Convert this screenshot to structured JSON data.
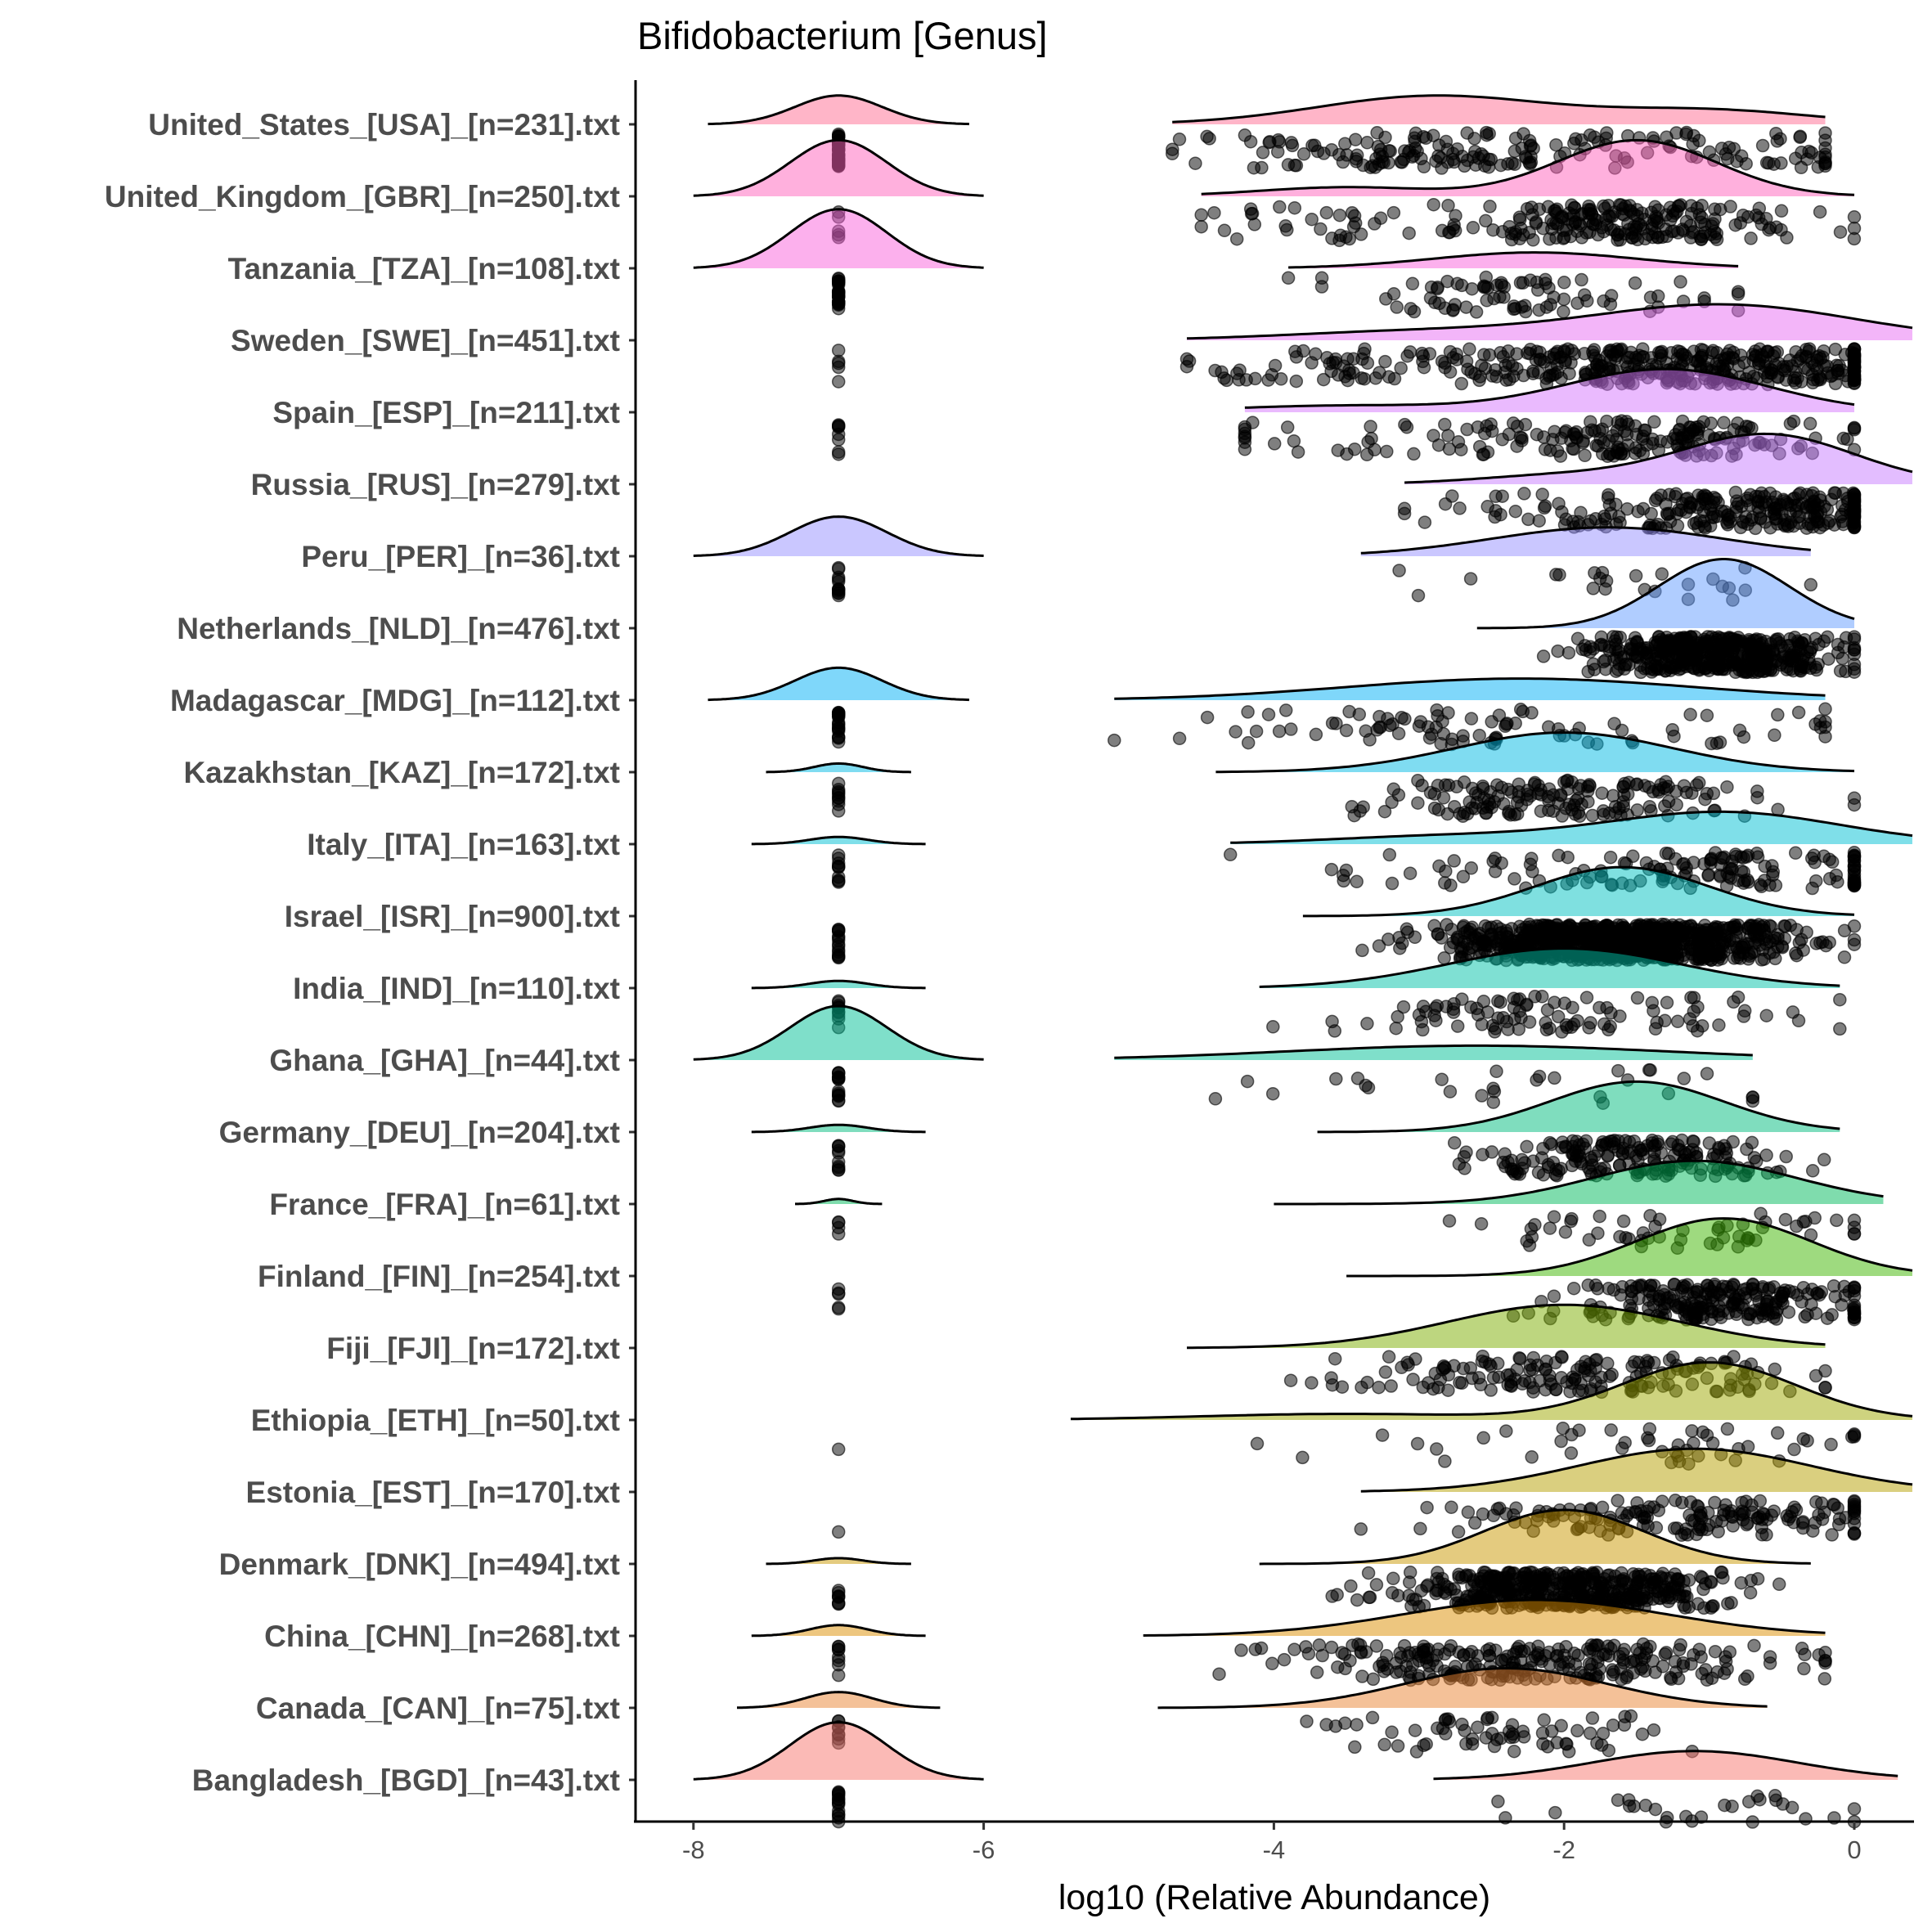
{
  "chart_data": {
    "type": "raincloud",
    "title": "Bifidobacterium [Genus]",
    "xlabel": "log10 (Relative Abundance)",
    "ylabel": "",
    "xlim": [
      -8.4,
      0.4
    ],
    "xticks": [
      -8,
      -6,
      -4,
      -2,
      0
    ],
    "xtick_labels": [
      "-8",
      "-6",
      "-4",
      "-2",
      "0"
    ],
    "grid": false,
    "legend": "none",
    "point_color": "#000000",
    "zero_value": -7,
    "series": [
      {
        "label": "United_States_[USA]_[n=231].txt",
        "n": 231,
        "color": "#FF6C91",
        "zero_count": 40,
        "zero_peak": 0.4,
        "zero_range": [
          -7.9,
          -6.1
        ],
        "range": [
          -4.7,
          -0.2
        ],
        "peak": 0.4,
        "components": [
          [
            -2.9,
            0.8,
            0.7
          ],
          [
            -1.0,
            0.7,
            0.3
          ]
        ]
      },
      {
        "label": "United_Kingdom_[GBR]_[n=250].txt",
        "n": 250,
        "color": "#FF62BC",
        "zero_count": 5,
        "zero_peak": 0.78,
        "zero_range": [
          -8.0,
          -6.0
        ],
        "range": [
          -4.5,
          0.0
        ],
        "peak": 0.78,
        "components": [
          [
            -1.5,
            0.55,
            0.85
          ],
          [
            -3.5,
            0.6,
            0.15
          ]
        ]
      },
      {
        "label": "Tanzania_[TZA]_[n=108].txt",
        "n": 108,
        "color": "#FA62DB",
        "zero_count": 30,
        "zero_peak": 0.82,
        "zero_range": [
          -8.0,
          -6.0
        ],
        "range": [
          -3.9,
          -0.8
        ],
        "peak": 0.22,
        "components": [
          [
            -2.2,
            0.7,
            1
          ]
        ]
      },
      {
        "label": "Sweden_[SWE]_[n=451].txt",
        "n": 451,
        "color": "#E76BF3",
        "zero_count": 5,
        "zero_peak": 0,
        "zero_range": [
          -7.1,
          -6.9
        ],
        "range": [
          -4.6,
          0.4
        ],
        "peak": 0.5,
        "components": [
          [
            -0.9,
            0.9,
            0.8
          ],
          [
            -3.0,
            0.9,
            0.2
          ]
        ]
      },
      {
        "label": "Spain_[ESP]_[n=211].txt",
        "n": 211,
        "color": "#D575FE",
        "zero_count": 8,
        "zero_peak": 0,
        "zero_range": [
          -7.1,
          -6.9
        ],
        "range": [
          -4.2,
          0.0
        ],
        "peak": 0.6,
        "components": [
          [
            -1.3,
            0.7,
            0.85
          ],
          [
            -3.5,
            0.8,
            0.15
          ]
        ]
      },
      {
        "label": "Russia_[RUS]_[n=279].txt",
        "n": 279,
        "color": "#C77CFF",
        "zero_count": 0,
        "zero_peak": 0,
        "zero_range": [
          -7.1,
          -6.9
        ],
        "range": [
          -3.1,
          0.4
        ],
        "peak": 0.7,
        "components": [
          [
            -0.6,
            0.6,
            0.85
          ],
          [
            -2.0,
            0.6,
            0.15
          ]
        ]
      },
      {
        "label": "Peru_[PER]_[n=36].txt",
        "n": 36,
        "color": "#9590FF",
        "zero_count": 12,
        "zero_peak": 0.55,
        "zero_range": [
          -8.0,
          -6.0
        ],
        "range": [
          -3.4,
          -0.3
        ],
        "peak": 0.4,
        "components": [
          [
            -1.7,
            0.8,
            1
          ]
        ]
      },
      {
        "label": "Netherlands_[NLD]_[n=476].txt",
        "n": 476,
        "color": "#619CFF",
        "zero_count": 0,
        "zero_peak": 0,
        "zero_range": [
          -7.1,
          -6.9
        ],
        "range": [
          -2.6,
          0.0
        ],
        "peak": 0.96,
        "components": [
          [
            -0.9,
            0.45,
            1
          ]
        ]
      },
      {
        "label": "Madagascar_[MDG]_[n=112].txt",
        "n": 112,
        "color": "#00B0F6",
        "zero_count": 20,
        "zero_peak": 0.45,
        "zero_range": [
          -7.9,
          -6.1
        ],
        "range": [
          -5.1,
          -0.2
        ],
        "peak": 0.3,
        "components": [
          [
            -2.3,
            1.2,
            1
          ]
        ]
      },
      {
        "label": "Kazakhstan_[KAZ]_[n=172].txt",
        "n": 172,
        "color": "#00B9E3",
        "zero_count": 10,
        "zero_peak": 0.12,
        "zero_range": [
          -7.5,
          -6.5
        ],
        "range": [
          -4.4,
          0.0
        ],
        "peak": 0.55,
        "components": [
          [
            -2.0,
            0.75,
            1
          ]
        ]
      },
      {
        "label": "Italy_[ITA]_[n=163].txt",
        "n": 163,
        "color": "#00BFD4",
        "zero_count": 10,
        "zero_peak": 0.1,
        "zero_range": [
          -7.6,
          -6.4
        ],
        "range": [
          -4.3,
          0.4
        ],
        "peak": 0.45,
        "components": [
          [
            -0.9,
            0.8,
            0.8
          ],
          [
            -2.8,
            0.8,
            0.2
          ]
        ]
      },
      {
        "label": "Israel_[ISR]_[n=900].txt",
        "n": 900,
        "color": "#00C1C1",
        "zero_count": 15,
        "zero_peak": 0,
        "zero_range": [
          -7.1,
          -6.9
        ],
        "range": [
          -3.8,
          0.0
        ],
        "peak": 0.68,
        "components": [
          [
            -1.6,
            0.6,
            1
          ]
        ]
      },
      {
        "label": "India_[IND]_[n=110].txt",
        "n": 110,
        "color": "#00C1A7",
        "zero_count": 10,
        "zero_peak": 0.1,
        "zero_range": [
          -7.6,
          -6.4
        ],
        "range": [
          -4.1,
          -0.1
        ],
        "peak": 0.55,
        "components": [
          [
            -2.0,
            0.8,
            1
          ]
        ]
      },
      {
        "label": "Ghana_[GHA]_[n=44].txt",
        "n": 44,
        "color": "#00BF96",
        "zero_count": 15,
        "zero_peak": 0.75,
        "zero_range": [
          -8.0,
          -6.0
        ],
        "range": [
          -5.1,
          -0.7
        ],
        "peak": 0.2,
        "components": [
          [
            -2.6,
            1.3,
            1
          ]
        ]
      },
      {
        "label": "Germany_[DEU]_[n=204].txt",
        "n": 204,
        "color": "#00BC7D",
        "zero_count": 10,
        "zero_peak": 0.1,
        "zero_range": [
          -7.6,
          -6.4
        ],
        "range": [
          -3.7,
          -0.1
        ],
        "peak": 0.7,
        "components": [
          [
            -1.5,
            0.6,
            1
          ]
        ]
      },
      {
        "label": "France_[FRA]_[n=61].txt",
        "n": 61,
        "color": "#00BA5C",
        "zero_count": 4,
        "zero_peak": 0.07,
        "zero_range": [
          -7.3,
          -6.7
        ],
        "range": [
          -4.0,
          0.2
        ],
        "peak": 0.6,
        "components": [
          [
            -1.1,
            0.7,
            1
          ]
        ]
      },
      {
        "label": "Finland_[FIN]_[n=254].txt",
        "n": 254,
        "color": "#3DB600",
        "zero_count": 5,
        "zero_peak": 0,
        "zero_range": [
          -7.1,
          -6.9
        ],
        "range": [
          -3.5,
          0.4
        ],
        "peak": 0.8,
        "components": [
          [
            -0.9,
            0.6,
            1
          ]
        ]
      },
      {
        "label": "Fiji_[FJI]_[n=172].txt",
        "n": 172,
        "color": "#7CAE00",
        "zero_count": 0,
        "zero_peak": 0,
        "zero_range": [
          -7.1,
          -6.9
        ],
        "range": [
          -4.6,
          -0.2
        ],
        "peak": 0.6,
        "components": [
          [
            -2.0,
            0.8,
            1
          ]
        ]
      },
      {
        "label": "Ethiopia_[ETH]_[n=50].txt",
        "n": 50,
        "color": "#9DA700",
        "zero_count": 1,
        "zero_peak": 0,
        "zero_range": [
          -7.1,
          -6.9
        ],
        "range": [
          -5.4,
          0.4
        ],
        "peak": 0.8,
        "components": [
          [
            -1.0,
            0.6,
            0.85
          ],
          [
            -3.5,
            1.0,
            0.15
          ]
        ]
      },
      {
        "label": "Estonia_[EST]_[n=170].txt",
        "n": 170,
        "color": "#B59F00",
        "zero_count": 1,
        "zero_peak": 0,
        "zero_range": [
          -7.1,
          -6.9
        ],
        "range": [
          -3.4,
          0.4
        ],
        "peak": 0.6,
        "components": [
          [
            -1.1,
            0.8,
            1
          ]
        ]
      },
      {
        "label": "Denmark_[DNK]_[n=494].txt",
        "n": 494,
        "color": "#C99800",
        "zero_count": 8,
        "zero_peak": 0.08,
        "zero_range": [
          -7.5,
          -6.5
        ],
        "range": [
          -4.1,
          -0.3
        ],
        "peak": 0.75,
        "components": [
          [
            -2.0,
            0.55,
            1
          ]
        ]
      },
      {
        "label": "China_[CHN]_[n=268].txt",
        "n": 268,
        "color": "#DB8E00",
        "zero_count": 8,
        "zero_peak": 0.15,
        "zero_range": [
          -7.6,
          -6.4
        ],
        "range": [
          -4.9,
          -0.2
        ],
        "peak": 0.5,
        "components": [
          [
            -2.2,
            0.9,
            1
          ]
        ]
      },
      {
        "label": "Canada_[CAN]_[n=75].txt",
        "n": 75,
        "color": "#EA8331",
        "zero_count": 8,
        "zero_peak": 0.22,
        "zero_range": [
          -7.7,
          -6.3
        ],
        "range": [
          -4.8,
          -0.6
        ],
        "peak": 0.55,
        "components": [
          [
            -2.4,
            0.7,
            1
          ]
        ]
      },
      {
        "label": "Bangladesh_[BGD]_[n=43].txt",
        "n": 43,
        "color": "#F8766D",
        "zero_count": 15,
        "zero_peak": 0.8,
        "zero_range": [
          -8.0,
          -6.0
        ],
        "range": [
          -2.9,
          0.3
        ],
        "peak": 0.4,
        "components": [
          [
            -1.1,
            0.7,
            1
          ]
        ]
      }
    ]
  }
}
